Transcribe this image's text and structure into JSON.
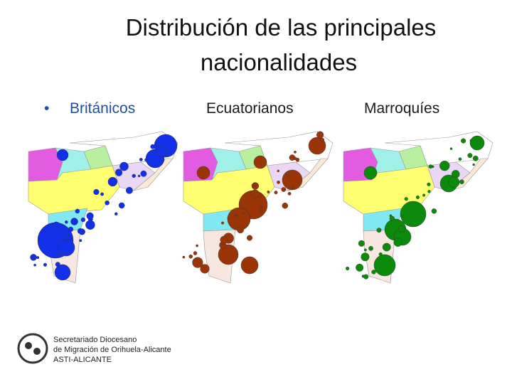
{
  "title": {
    "line1": "Distribución de las principales",
    "line2": "nacionalidades"
  },
  "maps": [
    {
      "label": "Británicos"
    },
    {
      "label": "Ecuatorianos"
    },
    {
      "label": "Marroquíes"
    }
  ],
  "logo": {
    "line1": "Secretariado Diocesano",
    "line2": "de Migración de Orihuela-Alicante",
    "line3": "ASTI-ALICANTE"
  }
}
